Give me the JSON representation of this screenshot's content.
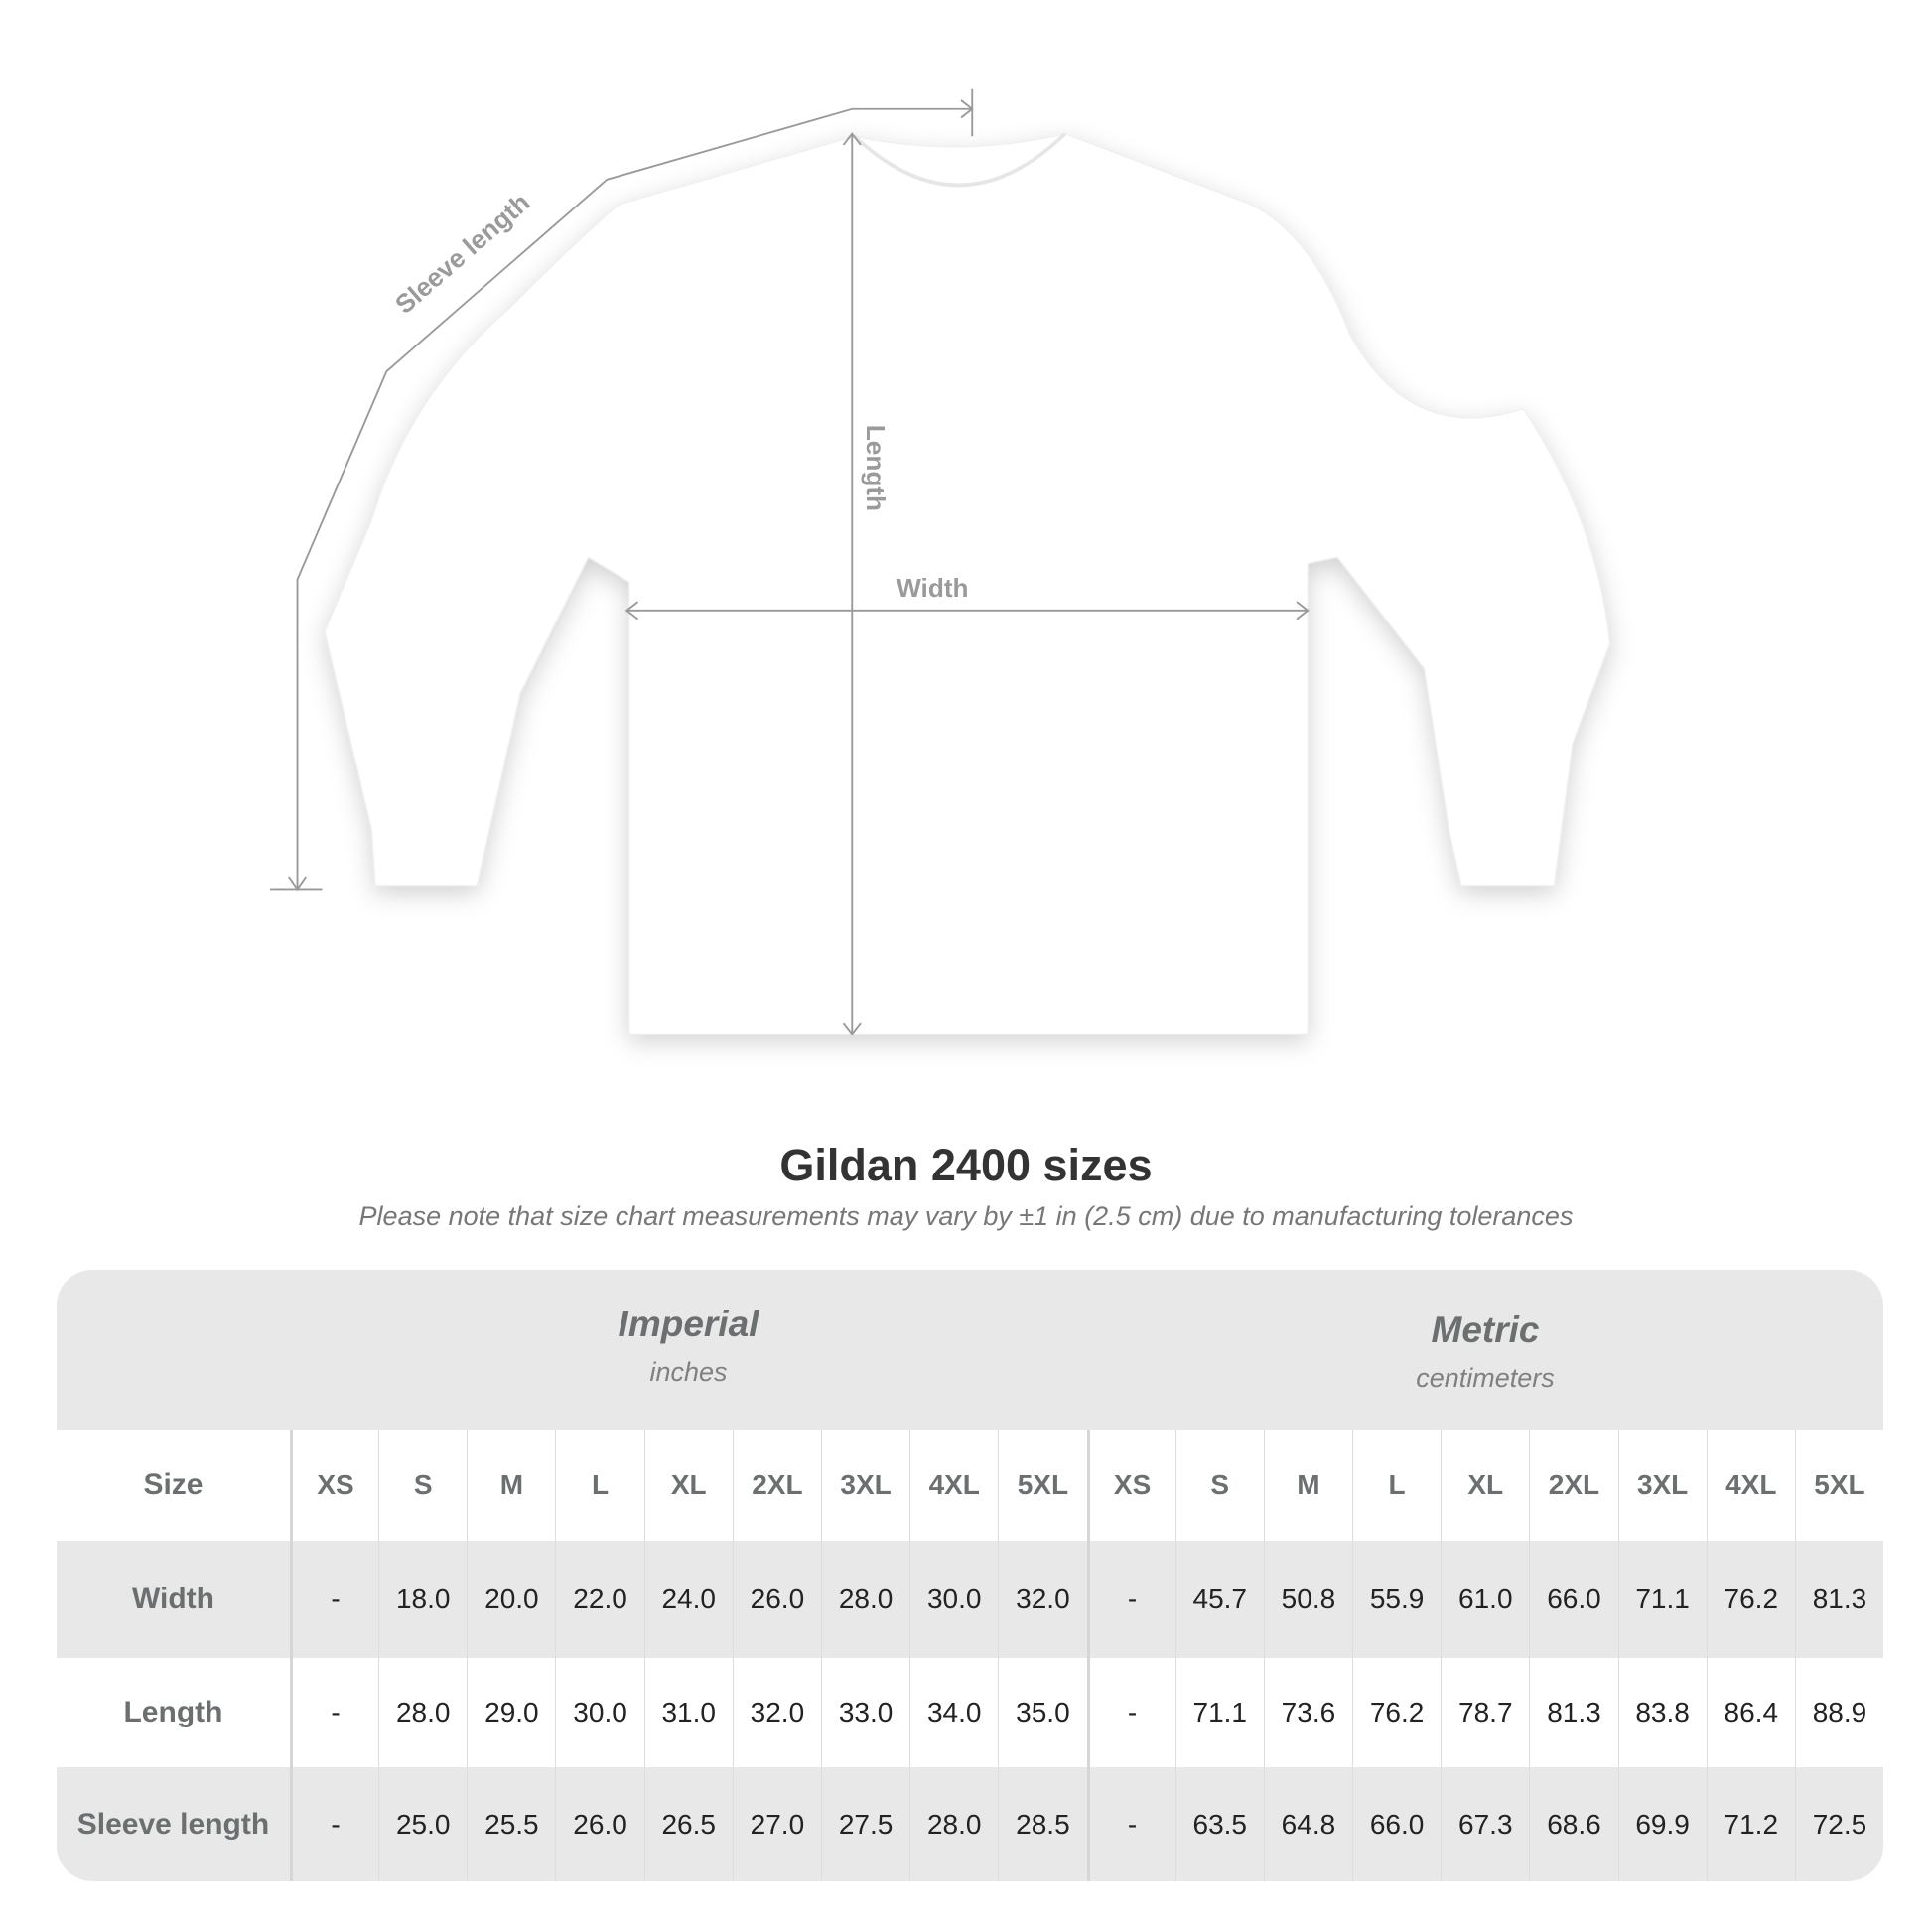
{
  "diagram": {
    "labels": {
      "sleeve": "Sleeve length",
      "length": "Length",
      "width": "Width"
    },
    "colors": {
      "shirt": "#ffffff",
      "measure_line": "#999999"
    }
  },
  "title": "Gildan 2400 sizes",
  "subtitle": "Please note that size chart measurements may vary by ±1 in (2.5 cm) due to manufacturing tolerances",
  "table": {
    "imperial": {
      "name": "Imperial",
      "unit": "inches"
    },
    "metric": {
      "name": "Metric",
      "unit": "centimeters"
    },
    "size_label": "Size",
    "sizes": [
      "XS",
      "S",
      "M",
      "L",
      "XL",
      "2XL",
      "3XL",
      "4XL",
      "5XL"
    ],
    "rows": [
      {
        "label": "Width",
        "imperial": [
          "-",
          "18.0",
          "20.0",
          "22.0",
          "24.0",
          "26.0",
          "28.0",
          "30.0",
          "32.0"
        ],
        "metric": [
          "-",
          "45.7",
          "50.8",
          "55.9",
          "61.0",
          "66.0",
          "71.1",
          "76.2",
          "81.3"
        ]
      },
      {
        "label": "Length",
        "imperial": [
          "-",
          "28.0",
          "29.0",
          "30.0",
          "31.0",
          "32.0",
          "33.0",
          "34.0",
          "35.0"
        ],
        "metric": [
          "-",
          "71.1",
          "73.6",
          "76.2",
          "78.7",
          "81.3",
          "83.8",
          "86.4",
          "88.9"
        ]
      },
      {
        "label": "Sleeve length",
        "imperial": [
          "-",
          "25.0",
          "25.5",
          "26.0",
          "26.5",
          "27.0",
          "27.5",
          "28.0",
          "28.5"
        ],
        "metric": [
          "-",
          "63.5",
          "64.8",
          "66.0",
          "67.3",
          "68.6",
          "69.9",
          "71.2",
          "72.5"
        ]
      }
    ]
  }
}
